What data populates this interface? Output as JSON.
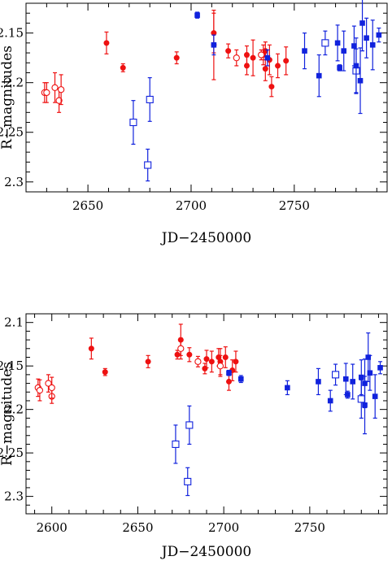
{
  "chart_data": [
    {
      "type": "scatter",
      "xlabel": "JD−2450000",
      "ylabel": "R−magnitudes",
      "xlim": [
        2620,
        2795
      ],
      "ylim": [
        2.31,
        2.12
      ],
      "y_inverted": true,
      "x_ticks": [
        2650,
        2700,
        2750
      ],
      "y_ticks": [
        2.15,
        2.2,
        2.25,
        2.3
      ],
      "grid": false,
      "colors": {
        "red": "#ee1111",
        "blue": "#1122dd"
      },
      "series": [
        {
          "marker": "filled-circle",
          "color": "red",
          "points": [
            {
              "x": 2659,
              "y": 2.16,
              "err": 0.011
            },
            {
              "x": 2667,
              "y": 2.185,
              "err": 0.004
            },
            {
              "x": 2693,
              "y": 2.175,
              "err": 0.006
            },
            {
              "x": 2711,
              "y": 2.15,
              "err": 0.02
            },
            {
              "x": 2711,
              "y": 2.162,
              "err": 0.035
            },
            {
              "x": 2718,
              "y": 2.168,
              "err": 0.007
            },
            {
              "x": 2727,
              "y": 2.183,
              "err": 0.009
            },
            {
              "x": 2727,
              "y": 2.172,
              "err": 0.009
            },
            {
              "x": 2730,
              "y": 2.175,
              "err": 0.018
            },
            {
              "x": 2735,
              "y": 2.172,
              "err": 0.01
            },
            {
              "x": 2736,
              "y": 2.186,
              "err": 0.012
            },
            {
              "x": 2736,
              "y": 2.168,
              "err": 0.009
            },
            {
              "x": 2738,
              "y": 2.177,
              "err": 0.015
            },
            {
              "x": 2739,
              "y": 2.204,
              "err": 0.01
            },
            {
              "x": 2742,
              "y": 2.183,
              "err": 0.012
            },
            {
              "x": 2746,
              "y": 2.178,
              "err": 0.014
            }
          ]
        },
        {
          "marker": "open-circle",
          "color": "red",
          "points": [
            {
              "x": 2629,
              "y": 2.21,
              "err": 0.01
            },
            {
              "x": 2630,
              "y": 2.21,
              "err": 0.01
            },
            {
              "x": 2634,
              "y": 2.205,
              "err": 0.015
            },
            {
              "x": 2636,
              "y": 2.218,
              "err": 0.012
            },
            {
              "x": 2637,
              "y": 2.207,
              "err": 0.015
            },
            {
              "x": 2722,
              "y": 2.175,
              "err": 0.008
            },
            {
              "x": 2734,
              "y": 2.172,
              "err": 0.005
            }
          ]
        },
        {
          "marker": "open-square",
          "color": "blue",
          "points": [
            {
              "x": 2672,
              "y": 2.24,
              "err": 0.022
            },
            {
              "x": 2679,
              "y": 2.283,
              "err": 0.016
            },
            {
              "x": 2680,
              "y": 2.217,
              "err": 0.022
            },
            {
              "x": 2765,
              "y": 2.16,
              "err": 0.012
            },
            {
              "x": 2780,
              "y": 2.188,
              "err": 0.022
            }
          ]
        },
        {
          "marker": "filled-square",
          "color": "blue",
          "points": [
            {
              "x": 2703,
              "y": 2.132,
              "err": 0.003
            },
            {
              "x": 2711,
              "y": 2.162,
              "err": 0.01
            },
            {
              "x": 2737,
              "y": 2.175,
              "err": 0.008
            },
            {
              "x": 2755,
              "y": 2.168,
              "err": 0.018
            },
            {
              "x": 2762,
              "y": 2.193,
              "err": 0.021
            },
            {
              "x": 2771,
              "y": 2.16,
              "err": 0.018
            },
            {
              "x": 2772,
              "y": 2.185,
              "err": 0.003
            },
            {
              "x": 2774,
              "y": 2.168,
              "err": 0.02
            },
            {
              "x": 2779,
              "y": 2.163,
              "err": 0.02
            },
            {
              "x": 2780,
              "y": 2.183,
              "err": 0.028
            },
            {
              "x": 2782,
              "y": 2.198,
              "err": 0.033
            },
            {
              "x": 2783,
              "y": 2.14,
              "err": 0.028
            },
            {
              "x": 2785,
              "y": 2.155,
              "err": 0.02
            },
            {
              "x": 2788,
              "y": 2.162,
              "err": 0.025
            },
            {
              "x": 2791,
              "y": 2.152,
              "err": 0.007
            }
          ]
        }
      ]
    },
    {
      "type": "scatter",
      "xlabel": "JD−2450000",
      "ylabel": "R−magnitudes",
      "xlim": [
        2585,
        2795
      ],
      "ylim": [
        2.32,
        2.09
      ],
      "y_inverted": true,
      "x_ticks": [
        2600,
        2650,
        2700,
        2750
      ],
      "y_ticks": [
        2.1,
        2.15,
        2.2,
        2.25,
        2.3
      ],
      "grid": false,
      "colors": {
        "red": "#ee1111",
        "blue": "#1122dd"
      },
      "series": [
        {
          "marker": "filled-circle",
          "color": "red",
          "points": [
            {
              "x": 2623,
              "y": 2.13,
              "err": 0.012
            },
            {
              "x": 2631,
              "y": 2.157,
              "err": 0.004
            },
            {
              "x": 2656,
              "y": 2.145,
              "err": 0.007
            },
            {
              "x": 2673,
              "y": 2.137,
              "err": 0.005
            },
            {
              "x": 2675,
              "y": 2.12,
              "err": 0.018
            },
            {
              "x": 2680,
              "y": 2.137,
              "err": 0.008
            },
            {
              "x": 2689,
              "y": 2.153,
              "err": 0.006
            },
            {
              "x": 2690,
              "y": 2.142,
              "err": 0.01
            },
            {
              "x": 2693,
              "y": 2.145,
              "err": 0.012
            },
            {
              "x": 2697,
              "y": 2.14,
              "err": 0.01
            },
            {
              "x": 2698,
              "y": 2.145,
              "err": 0.015
            },
            {
              "x": 2701,
              "y": 2.14,
              "err": 0.012
            },
            {
              "x": 2703,
              "y": 2.168,
              "err": 0.01
            },
            {
              "x": 2705,
              "y": 2.155,
              "err": 0.012
            },
            {
              "x": 2707,
              "y": 2.145,
              "err": 0.012
            }
          ]
        },
        {
          "marker": "open-circle",
          "color": "red",
          "points": [
            {
              "x": 2592,
              "y": 2.175,
              "err": 0.01
            },
            {
              "x": 2593,
              "y": 2.178,
              "err": 0.012
            },
            {
              "x": 2598,
              "y": 2.17,
              "err": 0.01
            },
            {
              "x": 2600,
              "y": 2.185,
              "err": 0.008
            },
            {
              "x": 2600,
              "y": 2.175,
              "err": 0.012
            },
            {
              "x": 2675,
              "y": 2.13,
              "err": 0.012
            },
            {
              "x": 2685,
              "y": 2.145,
              "err": 0.006
            },
            {
              "x": 2698,
              "y": 2.15,
              "err": 0.012
            }
          ]
        },
        {
          "marker": "open-square",
          "color": "blue",
          "points": [
            {
              "x": 2672,
              "y": 2.24,
              "err": 0.022
            },
            {
              "x": 2679,
              "y": 2.283,
              "err": 0.016
            },
            {
              "x": 2680,
              "y": 2.218,
              "err": 0.022
            },
            {
              "x": 2765,
              "y": 2.16,
              "err": 0.012
            },
            {
              "x": 2780,
              "y": 2.188,
              "err": 0.022
            }
          ]
        },
        {
          "marker": "filled-square",
          "color": "blue",
          "points": [
            {
              "x": 2703,
              "y": 2.158,
              "err": 0.003
            },
            {
              "x": 2710,
              "y": 2.165,
              "err": 0.004
            },
            {
              "x": 2737,
              "y": 2.175,
              "err": 0.008
            },
            {
              "x": 2755,
              "y": 2.168,
              "err": 0.015
            },
            {
              "x": 2762,
              "y": 2.19,
              "err": 0.012
            },
            {
              "x": 2771,
              "y": 2.165,
              "err": 0.018
            },
            {
              "x": 2772,
              "y": 2.183,
              "err": 0.004
            },
            {
              "x": 2775,
              "y": 2.168,
              "err": 0.02
            },
            {
              "x": 2780,
              "y": 2.163,
              "err": 0.02
            },
            {
              "x": 2782,
              "y": 2.17,
              "err": 0.028
            },
            {
              "x": 2782,
              "y": 2.195,
              "err": 0.033
            },
            {
              "x": 2784,
              "y": 2.14,
              "err": 0.028
            },
            {
              "x": 2785,
              "y": 2.158,
              "err": 0.02
            },
            {
              "x": 2788,
              "y": 2.185,
              "err": 0.025
            },
            {
              "x": 2791,
              "y": 2.152,
              "err": 0.007
            }
          ]
        }
      ]
    }
  ]
}
